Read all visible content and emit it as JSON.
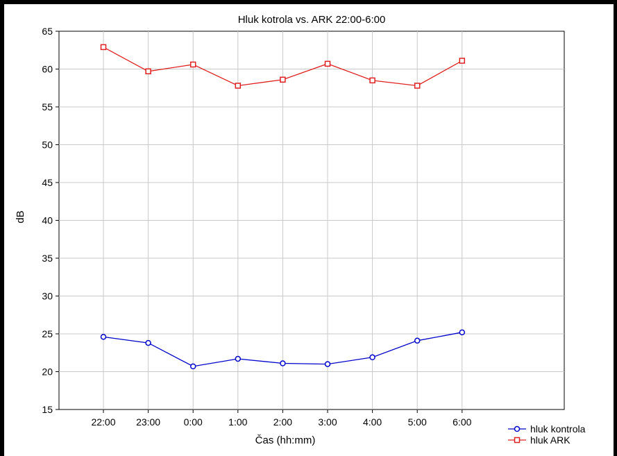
{
  "chart_data": {
    "type": "line",
    "title": "Hluk kotrola vs. ARK 22:00-6:00",
    "xlabel": "Čas (hh:mm)",
    "ylabel": "dB",
    "categories": [
      "22:00",
      "23:00",
      "0:00",
      "1:00",
      "2:00",
      "3:00",
      "4:00",
      "5:00",
      "6:00"
    ],
    "ylim": [
      15,
      65
    ],
    "yticks": [
      15,
      20,
      25,
      30,
      35,
      40,
      45,
      50,
      55,
      60,
      65
    ],
    "grid": true,
    "legend_position": "bottom-right",
    "series": [
      {
        "name": "hluk kontrola",
        "color": "#0000cc",
        "marker": "circle",
        "values": [
          24.6,
          23.8,
          20.7,
          21.7,
          21.1,
          21.0,
          21.9,
          24.1,
          25.2
        ]
      },
      {
        "name": "hluk ARK",
        "color": "#e02020",
        "marker": "square",
        "values": [
          62.9,
          59.7,
          60.6,
          57.8,
          58.6,
          60.7,
          58.5,
          57.8,
          61.1
        ]
      }
    ]
  }
}
